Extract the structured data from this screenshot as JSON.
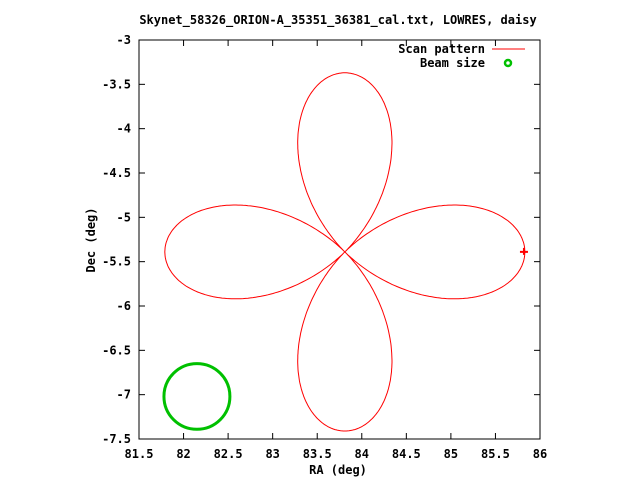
{
  "chart_data": {
    "type": "line",
    "title": "Skynet_58326_ORION-A_35351_36381_cal.txt, LOWRES, daisy",
    "xlabel": "RA (deg)",
    "ylabel": "Dec (deg)",
    "xlim": [
      81.5,
      86
    ],
    "ylim": [
      -7.5,
      -3
    ],
    "xticks": [
      "81.5",
      "82",
      "82.5",
      "83",
      "83.5",
      "84",
      "84.5",
      "85",
      "85.5",
      "86"
    ],
    "yticks": [
      "-3",
      "-3.5",
      "-4",
      "-4.5",
      "-5",
      "-5.5",
      "-6",
      "-6.5",
      "-7",
      "-7.5"
    ],
    "legend_position": "top-right",
    "series": [
      {
        "name": "Scan pattern",
        "color": "#ff0000",
        "kind": "daisy",
        "center": [
          83.81,
          -5.39
        ],
        "radius_deg": 2.02,
        "petals": 4,
        "petal_shape_exponent": 1.1,
        "start": [
          85.82,
          -5.39
        ]
      },
      {
        "name": "Beam size",
        "color": "#00c000",
        "kind": "circle",
        "center": [
          82.15,
          -7.02
        ],
        "radius_deg": 0.37
      }
    ]
  }
}
